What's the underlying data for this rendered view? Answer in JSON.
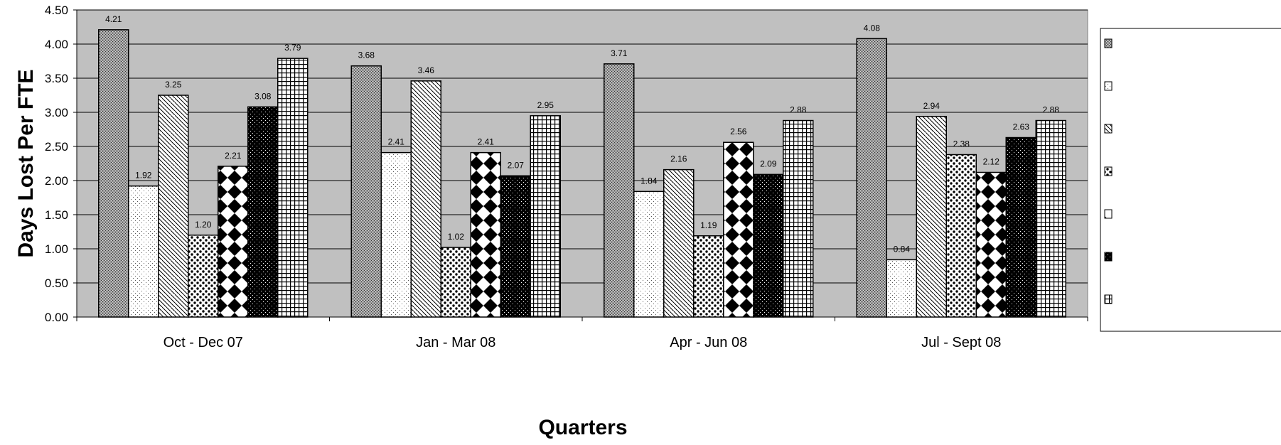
{
  "chart_data": {
    "type": "bar",
    "title": "",
    "xlabel": "Quarters",
    "ylabel": "Days Lost Per FTE",
    "ylim": [
      0,
      4.5
    ],
    "ytick_step": 0.5,
    "ytick_labels": [
      "0.00",
      "0.50",
      "1.00",
      "1.50",
      "2.00",
      "2.50",
      "3.00",
      "3.50",
      "4.00",
      "4.50"
    ],
    "grid": true,
    "legend_position": "right",
    "categories": [
      "Oct - Dec 07",
      "Jan - Mar 08",
      "Apr - Jun 08",
      "Jul - Sept 08"
    ],
    "series": [
      {
        "values": [
          4.21,
          3.68,
          3.71,
          4.08
        ],
        "labels": [
          "4.21",
          "3.68",
          "3.71",
          "4.08"
        ]
      },
      {
        "values": [
          1.92,
          2.41,
          1.84,
          0.84
        ],
        "labels": [
          "1.92",
          "2.41",
          "1.84",
          "0.84"
        ]
      },
      {
        "values": [
          3.25,
          3.46,
          2.16,
          2.94
        ],
        "labels": [
          "3.25",
          "3.46",
          "2.16",
          "2.94"
        ]
      },
      {
        "values": [
          1.2,
          1.02,
          1.19,
          2.38
        ],
        "labels": [
          "1.20",
          "1.02",
          "1.19",
          "2.38"
        ]
      },
      {
        "values": [
          2.21,
          2.41,
          2.56,
          2.12
        ],
        "labels": [
          "2.21",
          "2.41",
          "2.56",
          "2.12"
        ]
      },
      {
        "values": [
          3.08,
          2.07,
          2.09,
          2.63
        ],
        "labels": [
          "3.08",
          "2.07",
          "2.09",
          "2.63"
        ]
      },
      {
        "values": [
          3.79,
          2.95,
          2.88,
          2.88
        ],
        "labels": [
          "3.79",
          "2.95",
          "2.88",
          "2.88"
        ]
      }
    ],
    "colors": {
      "plot_background": "#c0c0c0",
      "grid": "#000000",
      "bar_stroke": "#000000"
    }
  }
}
